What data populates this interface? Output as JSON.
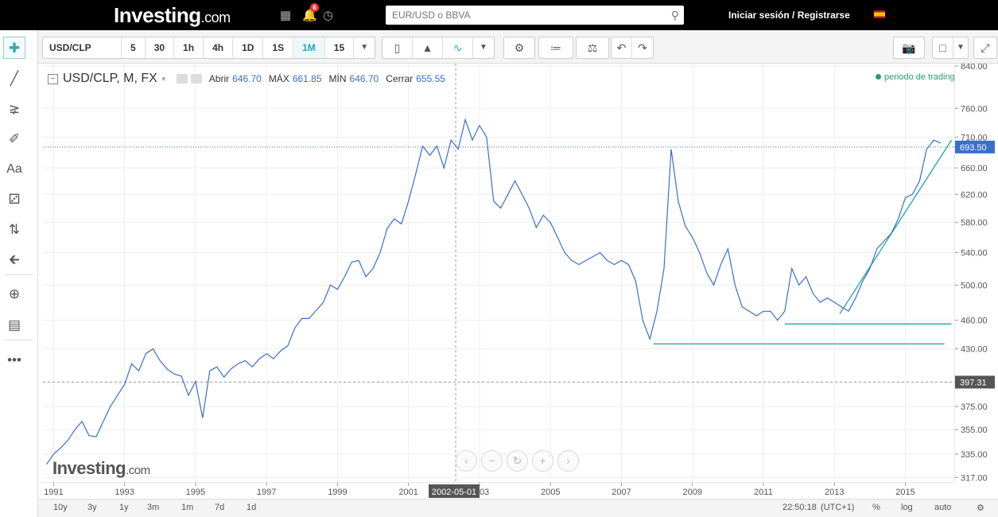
{
  "header": {
    "logo_main": "Investing",
    "logo_suffix": ".com",
    "notification_count": "6",
    "search_placeholder": "EUR/USD o BBVA",
    "login_label": "Iniciar sesión",
    "login_separator": "/",
    "register_label": "Registrarse"
  },
  "toolbar": {
    "symbol": "USD/CLP",
    "intervals": [
      "5",
      "30",
      "1h",
      "4h",
      "1D",
      "1S",
      "1M",
      "15"
    ],
    "active_interval": "1M"
  },
  "legend": {
    "title": "USD/CLP, M, FX",
    "open_label": "Abrir",
    "open_value": "646.70",
    "high_label": "MÁX",
    "high_value": "661.85",
    "low_label": "MÍN",
    "low_value": "646.70",
    "close_label": "Cerrar",
    "close_value": "655.55",
    "trading_period": "periodo de trading"
  },
  "watermark": {
    "main": "Investing",
    "suffix": ".com"
  },
  "bottom": {
    "ranges": [
      "10y",
      "3y",
      "1y",
      "3m",
      "1m",
      "7d",
      "1d"
    ],
    "time": "22:50:18",
    "timezone": "(UTC+1)",
    "percent_label": "%",
    "log_label": "log",
    "auto_label": "auto"
  },
  "colors": {
    "line": "#3a6fc8",
    "trendline": "#1fa89b",
    "accent": "#1fa3c9",
    "price_label_bg": "#3a6fc8",
    "crosshair_label_bg": "#555555"
  },
  "chart_data": {
    "type": "line",
    "series": [
      {
        "x": [
          1990.8,
          1991.0,
          1991.2,
          1991.4,
          1991.6,
          1991.8,
          1992.0,
          1992.2,
          1992.4,
          1992.6,
          1992.8,
          1993.0,
          1993.2,
          1993.4,
          1993.6,
          1993.8,
          1994.0,
          1994.2,
          1994.4,
          1994.6,
          1994.8,
          1995.0,
          1995.2,
          1995.4,
          1995.6,
          1995.8,
          1996.0,
          1996.2,
          1996.4,
          1996.6,
          1996.8,
          1997.0,
          1997.2,
          1997.4,
          1997.6,
          1997.8,
          1998.0,
          1998.2,
          1998.4,
          1998.6,
          1998.8,
          1999.0,
          1999.2,
          1999.4,
          1999.6,
          1999.8,
          2000.0,
          2000.2,
          2000.4,
          2000.6,
          2000.8,
          2001.0,
          2001.2,
          2001.4,
          2001.6,
          2001.8,
          2002.0,
          2002.2,
          2002.4,
          2002.6,
          2002.8,
          2003.0,
          2003.2,
          2003.4,
          2003.6,
          2003.8,
          2004.0,
          2004.2,
          2004.4,
          2004.6,
          2004.8,
          2005.0,
          2005.2,
          2005.4,
          2005.6,
          2005.8,
          2006.0,
          2006.2,
          2006.4,
          2006.6,
          2006.8,
          2007.0,
          2007.2,
          2007.4,
          2007.6,
          2007.8,
          2008.0,
          2008.2,
          2008.4,
          2008.6,
          2008.8,
          2009.0,
          2009.2,
          2009.4,
          2009.6,
          2009.8,
          2010.0,
          2010.2,
          2010.4,
          2010.6,
          2010.8,
          2011.0,
          2011.2,
          2011.4,
          2011.6,
          2011.8,
          2012.0,
          2012.2,
          2012.4,
          2012.6,
          2012.8,
          2013.0,
          2013.2,
          2013.4,
          2013.6,
          2013.8,
          2014.0,
          2014.2,
          2014.4,
          2014.6,
          2014.8,
          2015.0,
          2015.2,
          2015.4,
          2015.6,
          2015.8,
          2016.0
        ],
        "values": [
          327,
          335,
          340,
          346,
          355,
          362,
          350,
          349,
          362,
          375,
          385,
          395,
          415,
          408,
          425,
          430,
          418,
          410,
          405,
          403,
          385,
          398,
          365,
          408,
          412,
          402,
          410,
          415,
          418,
          412,
          420,
          425,
          420,
          428,
          433,
          452,
          462,
          462,
          471,
          480,
          500,
          495,
          510,
          528,
          530,
          510,
          520,
          540,
          572,
          585,
          578,
          610,
          650,
          695,
          680,
          695,
          660,
          705,
          690,
          740,
          705,
          730,
          710,
          610,
          600,
          620,
          640,
          620,
          600,
          573,
          590,
          580,
          560,
          540,
          530,
          525,
          530,
          535,
          540,
          530,
          525,
          530,
          525,
          505,
          460,
          440,
          470,
          520,
          690,
          610,
          575,
          560,
          540,
          515,
          500,
          525,
          545,
          500,
          475,
          470,
          465,
          470,
          470,
          460,
          470,
          520,
          500,
          510,
          490,
          480,
          485,
          480,
          475,
          470,
          485,
          505,
          520,
          545,
          555,
          565,
          585,
          615,
          620,
          640,
          690,
          705,
          700
        ]
      }
    ],
    "x_ticks": [
      "1991",
      "1993",
      "1995",
      "1997",
      "1999",
      "2001",
      "2003",
      "2005",
      "2007",
      "2009",
      "2011",
      "2013",
      "2015"
    ],
    "x_tick_values": [
      1991,
      1993,
      1995,
      1997,
      1999,
      2001,
      2003,
      2005,
      2007,
      2009,
      2011,
      2013,
      2015
    ],
    "y_ticks": [
      "317.00",
      "335.00",
      "355.00",
      "375.00",
      "397.31",
      "430.00",
      "460.00",
      "500.00",
      "540.00",
      "580.00",
      "620.00",
      "660.00",
      "710.00",
      "760.00",
      "840.00"
    ],
    "y_tick_values": [
      317,
      335,
      355,
      375,
      397.31,
      430,
      460,
      500,
      540,
      580,
      620,
      660,
      710,
      760,
      840
    ],
    "y_scale": "log",
    "xlim": [
      1990.7,
      2016.4
    ],
    "ylim": [
      313,
      845
    ],
    "current_price": "693.50",
    "current_price_value": 693.5,
    "crosshair_price_label": "397.31",
    "crosshair_price_value": 397.31,
    "crosshair_date_label": "2002-05-01",
    "crosshair_date_value": 2002.33,
    "trendlines": [
      {
        "x1": 2007.9,
        "y1": 435,
        "x2": 2016.1,
        "y2": 435
      },
      {
        "x1": 2011.6,
        "y1": 456,
        "x2": 2016.3,
        "y2": 456
      },
      {
        "x1": 2013.15,
        "y1": 467,
        "x2": 2016.3,
        "y2": 705
      }
    ],
    "grid": true
  }
}
